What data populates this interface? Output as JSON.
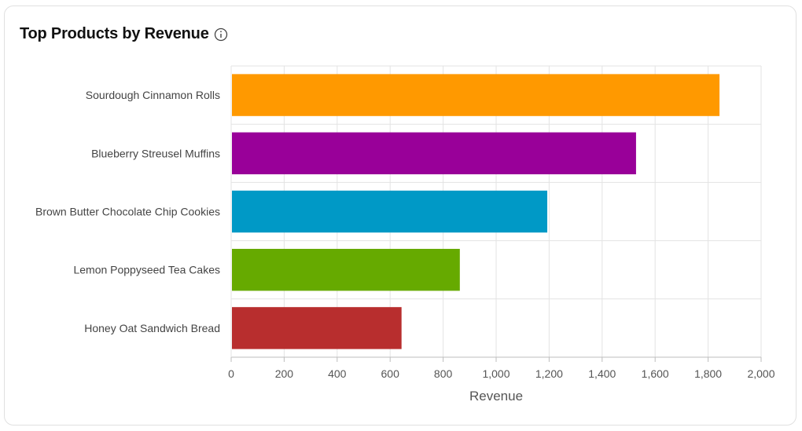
{
  "card": {
    "title": "Top Products by Revenue",
    "info_icon": "info-circle-icon"
  },
  "chart_data": {
    "type": "bar",
    "orientation": "horizontal",
    "title": "Top Products by Revenue",
    "xlabel": "Revenue",
    "ylabel": "",
    "xlim": [
      0,
      2000
    ],
    "x_ticks": [
      0,
      200,
      400,
      600,
      800,
      1000,
      1200,
      1400,
      1600,
      1800,
      2000
    ],
    "x_tick_labels": [
      "0",
      "200",
      "400",
      "600",
      "800",
      "1,000",
      "1,200",
      "1,400",
      "1,600",
      "1,800",
      "2,000"
    ],
    "grid": true,
    "categories": [
      "Sourdough Cinnamon Rolls",
      "Blueberry Streusel Muffins",
      "Brown Butter Chocolate Chip Cookies",
      "Lemon Poppyseed Tea Cakes",
      "Honey Oat Sandwich Bread"
    ],
    "values": [
      1840,
      1525,
      1190,
      860,
      640
    ],
    "colors": [
      "#ff9900",
      "#990099",
      "#0099c6",
      "#66aa00",
      "#b82e2e"
    ]
  }
}
